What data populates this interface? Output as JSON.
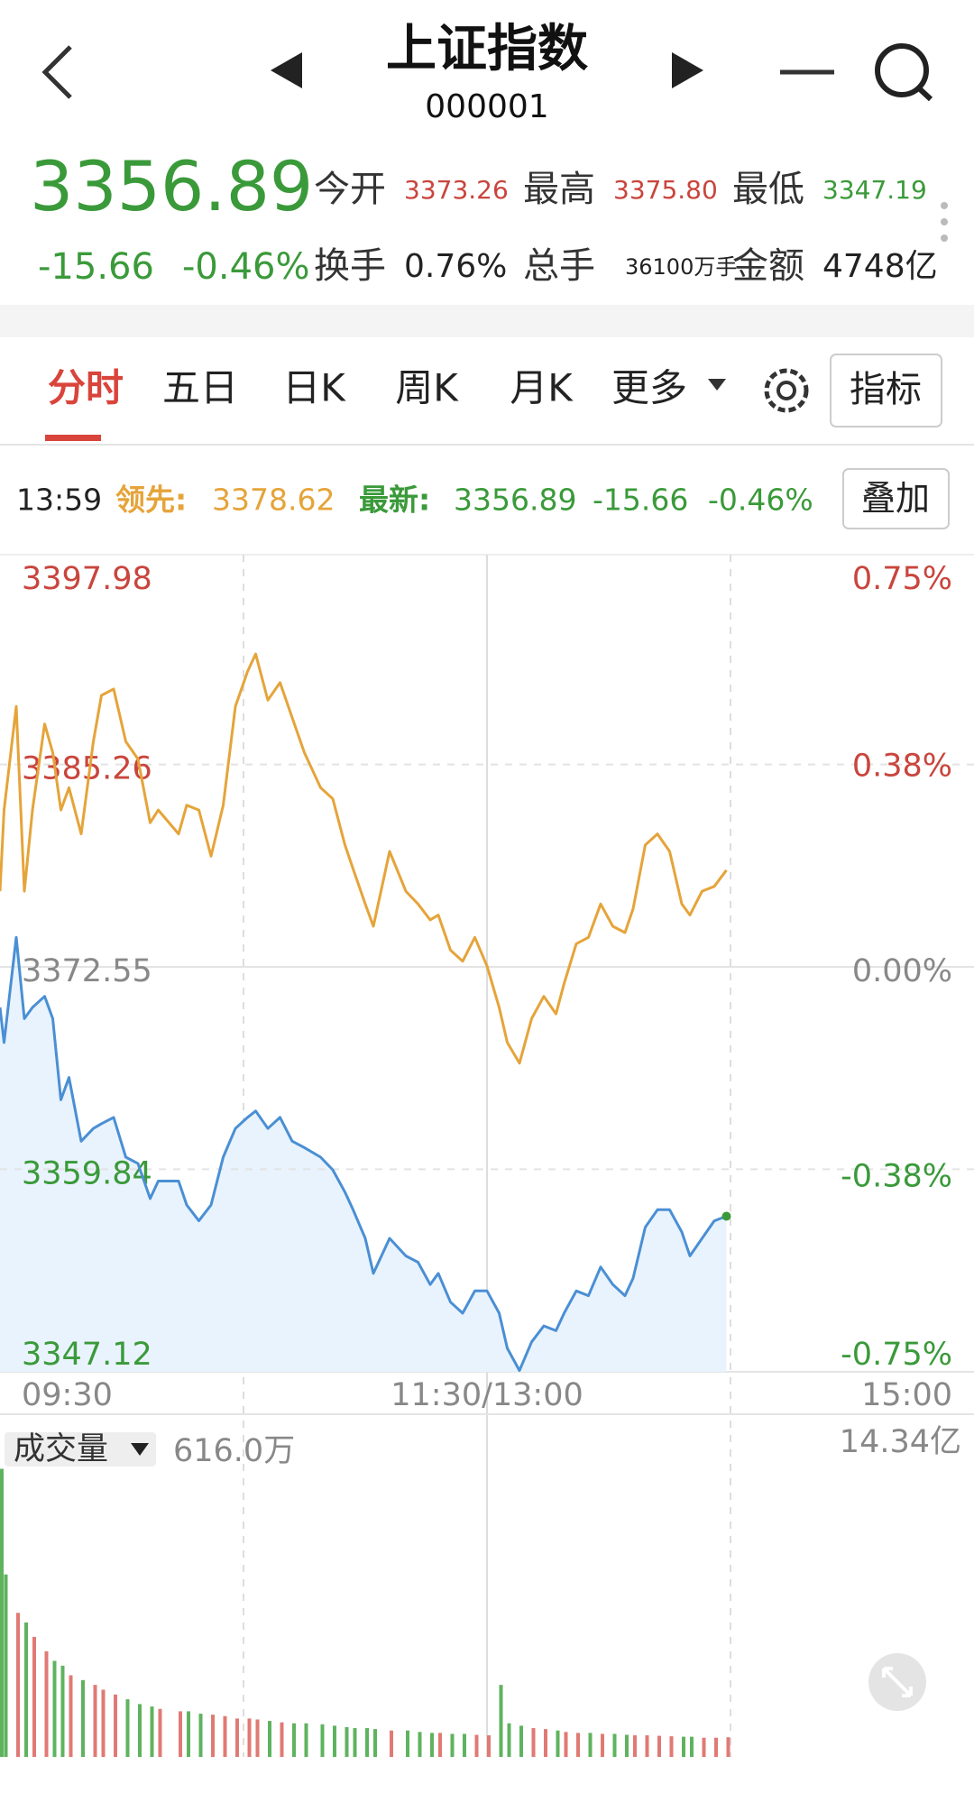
{
  "header": {
    "title": "上证指数",
    "code": "000001"
  },
  "quote": {
    "price": "3356.89",
    "change": "-15.66",
    "pct": "-0.46%",
    "stats": [
      {
        "label": "今开",
        "value": "3373.26"
      },
      {
        "label": "最高",
        "value": "3375.80"
      },
      {
        "label": "最低",
        "value": "3347.19"
      },
      {
        "label": "换手",
        "value": "0.76%"
      },
      {
        "label": "总手",
        "value": "36100万手"
      },
      {
        "label": "金额",
        "value": "4748亿"
      }
    ]
  },
  "tabs": [
    "分时",
    "五日",
    "日K",
    "周K",
    "月K",
    "更多"
  ],
  "indicator_button": "指标",
  "info": {
    "time": "13:59",
    "overlay_button": "叠加"
  },
  "chart_data": {
    "type": "line",
    "x": [
      "09:30",
      "09:31",
      "09:34",
      "09:36",
      "09:38",
      "09:41",
      "09:43",
      "09:45",
      "09:47",
      "09:50",
      "09:53",
      "09:55",
      "09:58",
      "10:01",
      "10:04",
      "10:07",
      "10:09",
      "10:14",
      "10:16",
      "10:19",
      "10:22",
      "10:25",
      "10:28",
      "10:31",
      "10:33",
      "10:36",
      "10:39",
      "10:42",
      "10:45",
      "10:49",
      "10:52",
      "10:55",
      "10:57",
      "11:00",
      "11:02",
      "11:06",
      "11:10",
      "11:13",
      "11:16",
      "11:18",
      "11:21",
      "11:24",
      "11:27",
      "11:30",
      "13:03",
      "13:05",
      "13:08",
      "13:11",
      "13:14",
      "13:17",
      "13:19",
      "13:22",
      "13:25",
      "13:28",
      "13:31",
      "13:34",
      "13:36",
      "13:39",
      "13:42",
      "13:45",
      "13:48",
      "13:50",
      "13:53",
      "13:56",
      "13:59"
    ],
    "series": [
      {
        "name": "最新:",
        "color": "#4a8fd4",
        "values": [
          3370.0,
          3367.8,
          3374.4,
          3369.3,
          3370.0,
          3370.7,
          3369.3,
          3364.2,
          3365.6,
          3361.6,
          3362.4,
          3362.7,
          3363.1,
          3360.6,
          3360.2,
          3358.0,
          3359.1,
          3359.1,
          3357.6,
          3356.6,
          3357.6,
          3360.6,
          3362.4,
          3363.1,
          3363.5,
          3362.4,
          3363.1,
          3361.6,
          3361.2,
          3360.6,
          3359.8,
          3358.4,
          3357.3,
          3355.5,
          3353.3,
          3355.5,
          3354.4,
          3354.0,
          3352.6,
          3353.3,
          3351.5,
          3350.8,
          3352.2,
          3352.2,
          3350.8,
          3348.6,
          3347.2,
          3349.0,
          3350.0,
          3349.7,
          3350.8,
          3352.2,
          3351.9,
          3353.7,
          3352.6,
          3351.9,
          3353.0,
          3356.2,
          3357.3,
          3357.3,
          3355.9,
          3354.4,
          3355.5,
          3356.6,
          3356.89
        ]
      },
      {
        "name": "领先:",
        "color": "#e5a43a",
        "values": [
          3377.3,
          3382.4,
          3388.9,
          3377.3,
          3382.4,
          3387.8,
          3386.0,
          3382.4,
          3383.8,
          3380.9,
          3386.7,
          3389.6,
          3390.0,
          3386.7,
          3385.6,
          3381.6,
          3382.4,
          3380.9,
          3382.7,
          3382.4,
          3379.5,
          3382.7,
          3388.9,
          3391.1,
          3392.2,
          3389.3,
          3390.4,
          3388.2,
          3386.0,
          3383.8,
          3383.1,
          3380.2,
          3378.7,
          3376.5,
          3375.1,
          3379.8,
          3377.3,
          3376.5,
          3375.5,
          3375.8,
          3373.6,
          3372.9,
          3374.4,
          3372.6,
          3370.0,
          3367.8,
          3366.5,
          3369.3,
          3370.7,
          3369.6,
          3371.5,
          3374.0,
          3374.4,
          3376.5,
          3375.1,
          3374.7,
          3376.2,
          3380.2,
          3380.9,
          3379.8,
          3376.5,
          3375.8,
          3377.3,
          3377.6,
          3378.62
        ]
      }
    ],
    "ylim": [
      3347.12,
      3397.98
    ],
    "yticks": [
      3347.12,
      3359.84,
      3372.55,
      3385.26,
      3397.98
    ],
    "y2lim": [
      -0.75,
      0.75
    ],
    "y2ticks": [
      {
        "value": -0.75,
        "label": "-0.75%"
      },
      {
        "value": -0.38,
        "label": "-0.38%"
      },
      {
        "value": 0,
        "label": "0.00%"
      },
      {
        "value": 0.38,
        "label": "0.38%"
      },
      {
        "value": 0.75,
        "label": "0.75%"
      }
    ],
    "xticks": [
      "09:30",
      "11:30/13:00",
      "15:00"
    ],
    "grid": true
  },
  "volume": {
    "label": "成交量",
    "amount": "14.34亿",
    "ylim": [
      0,
      616
    ],
    "yticks": [
      {
        "value": 616,
        "label": "616.0万"
      }
    ],
    "values": [
      600,
      380,
      300,
      280,
      250,
      220,
      200,
      190,
      170,
      160,
      150,
      140,
      130,
      120,
      110,
      105,
      100,
      95,
      95,
      90,
      88,
      85,
      80,
      80,
      78,
      75,
      72,
      70,
      70,
      68,
      65,
      62,
      60,
      60,
      58,
      55,
      55,
      52,
      50,
      50,
      48,
      48,
      46,
      45,
      150,
      70,
      65,
      60,
      58,
      55,
      52,
      50,
      50,
      48,
      48,
      46,
      45,
      45,
      44,
      43,
      42,
      42,
      40,
      40,
      41
    ]
  }
}
